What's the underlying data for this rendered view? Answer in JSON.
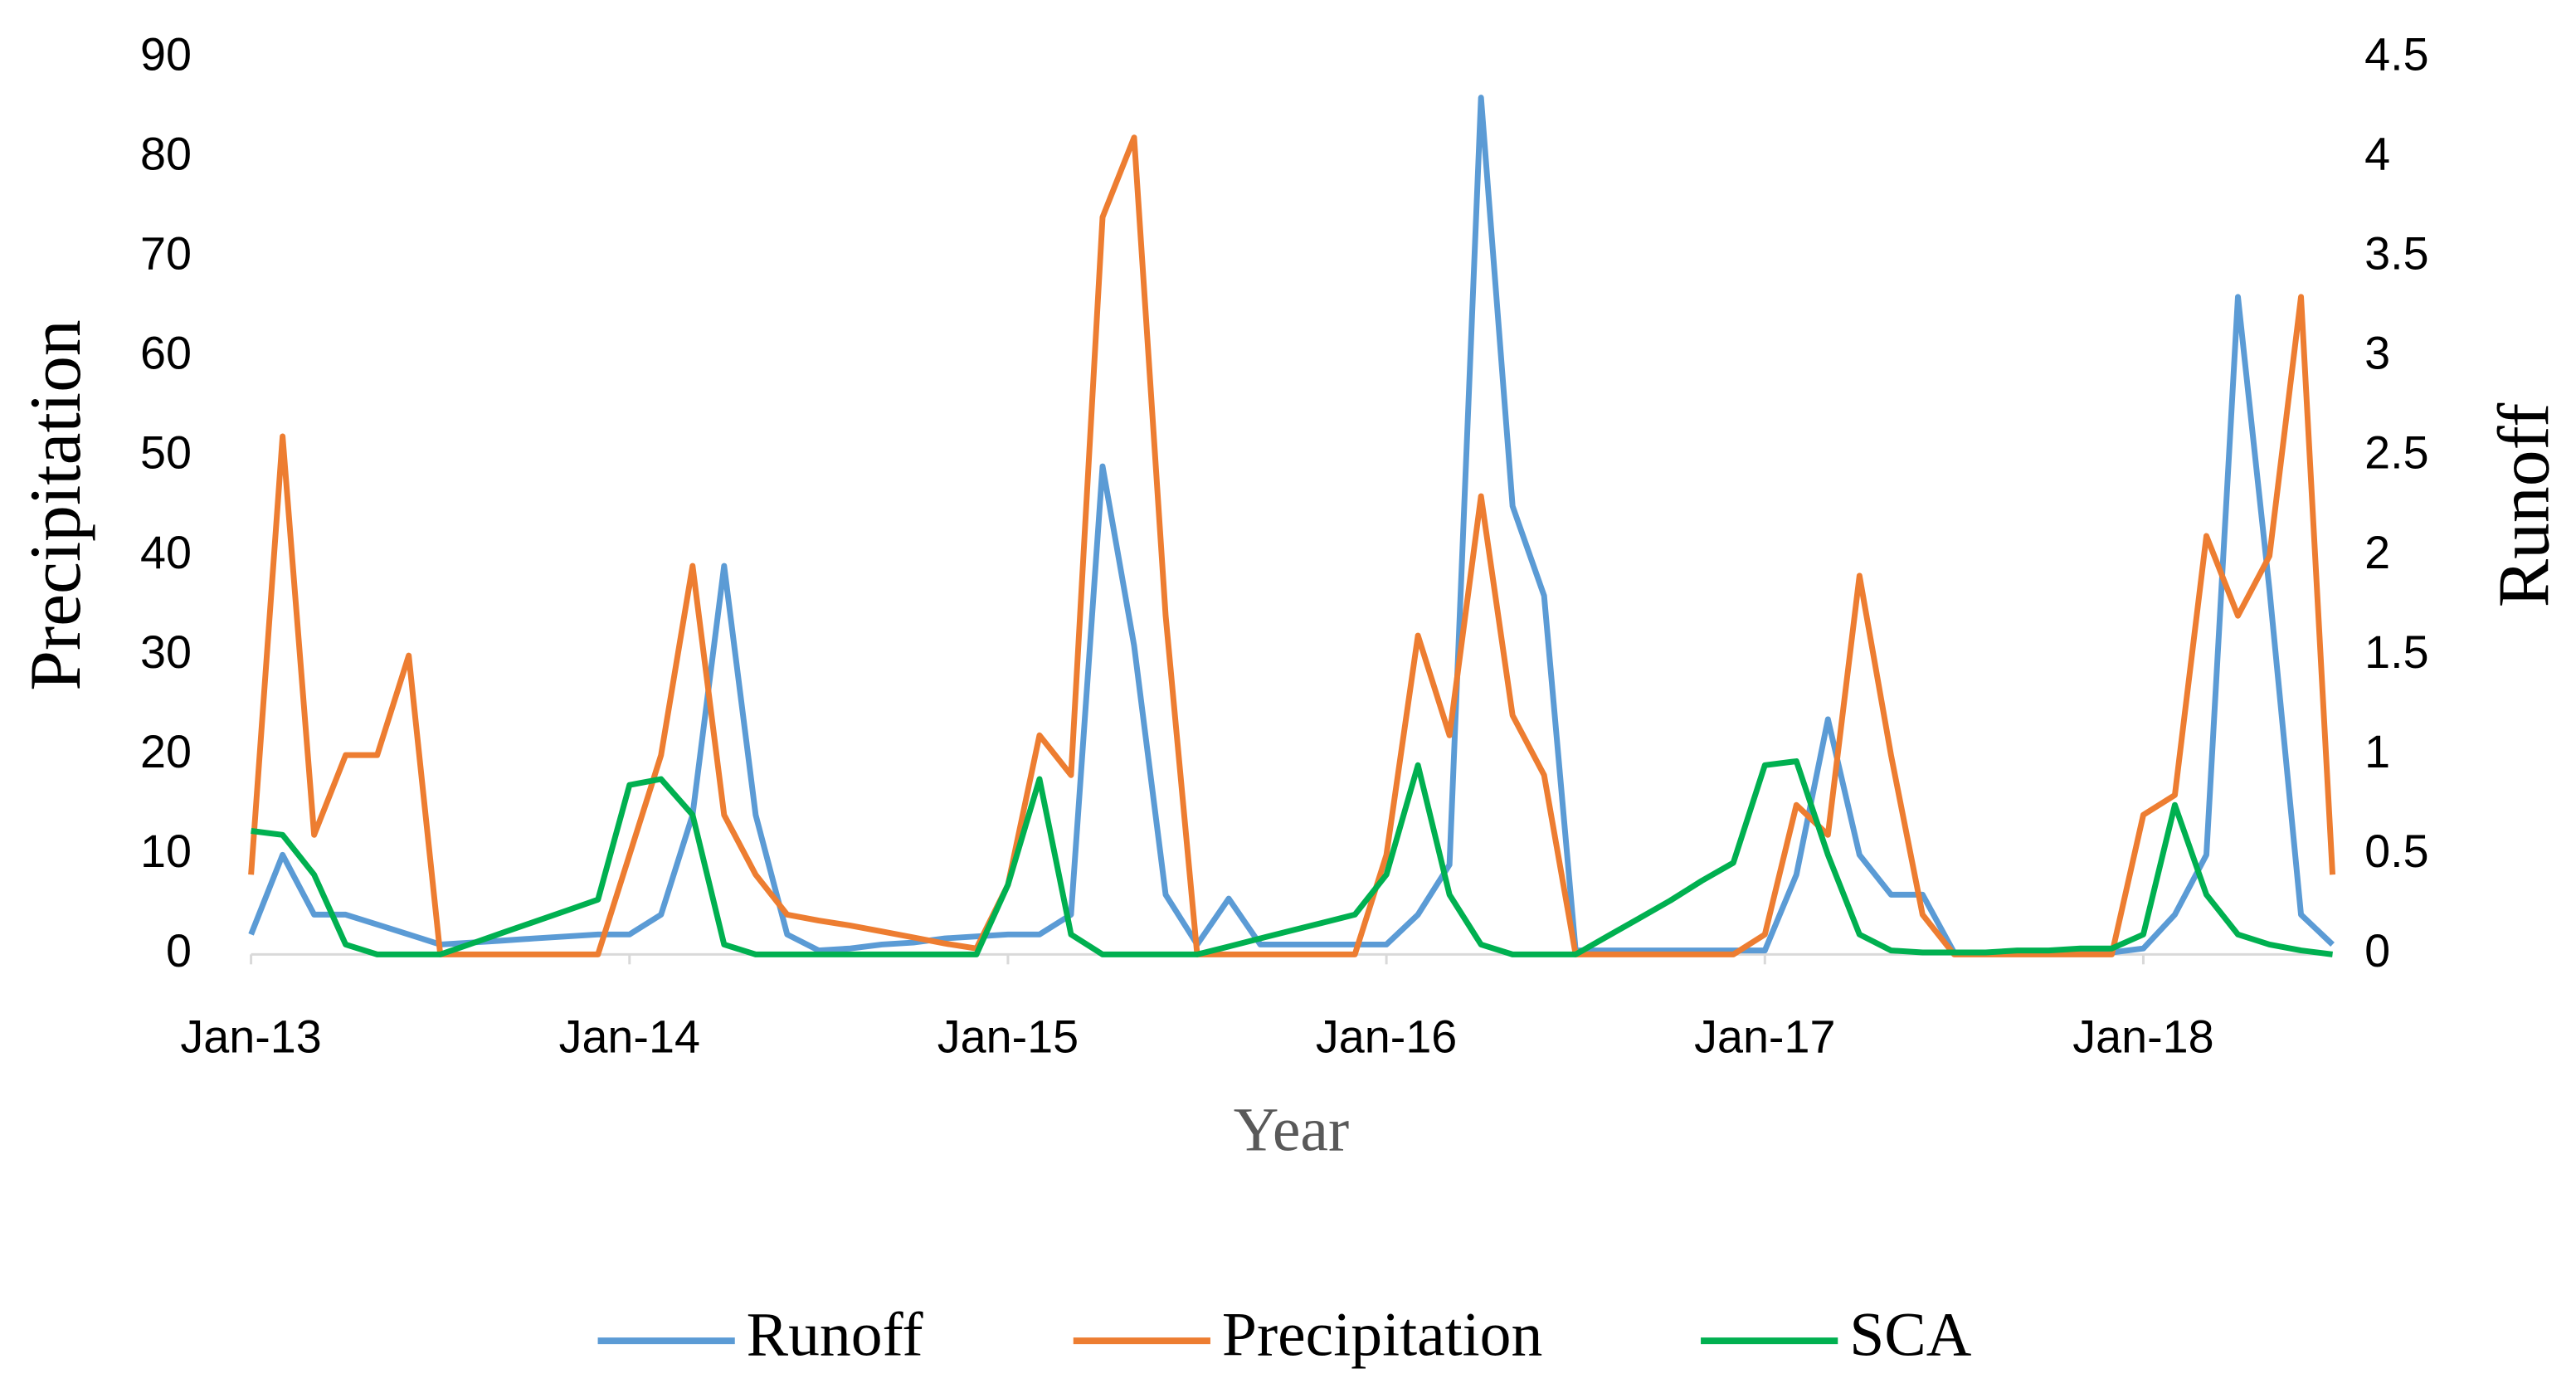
{
  "chart_data": {
    "type": "line",
    "x_label": "Year",
    "y_label": "Precipitation",
    "y2_label": "Runoff",
    "categories": [
      "Jan-13",
      null,
      null,
      null,
      null,
      null,
      null,
      null,
      null,
      null,
      null,
      null,
      "Jan-14",
      null,
      null,
      null,
      null,
      null,
      null,
      null,
      null,
      null,
      null,
      null,
      "Jan-15",
      null,
      null,
      null,
      null,
      null,
      null,
      null,
      null,
      null,
      null,
      null,
      "Jan-16",
      null,
      null,
      null,
      null,
      null,
      null,
      null,
      null,
      null,
      null,
      null,
      "Jan-17",
      null,
      null,
      null,
      null,
      null,
      null,
      null,
      null,
      null,
      null,
      null,
      "Jan-18",
      null,
      null,
      null,
      null,
      null,
      null
    ],
    "ylim": [
      0,
      90
    ],
    "yticks": [
      0,
      10,
      20,
      30,
      40,
      50,
      60,
      70,
      80,
      90
    ],
    "y2lim": [
      0,
      4.5
    ],
    "y2ticks": [
      0,
      0.5,
      1,
      1.5,
      2,
      2.5,
      3,
      3.5,
      4,
      4.5
    ],
    "grid": false,
    "legend": "bottom",
    "series": [
      {
        "name": "Runoff",
        "color": "#5b9bd5",
        "axis": "y2",
        "values": [
          0.1,
          0.5,
          0.2,
          0.2,
          0.15,
          0.1,
          0.05,
          0.06,
          0.07,
          0.08,
          0.09,
          0.1,
          0.1,
          0.2,
          0.7,
          1.95,
          0.7,
          0.1,
          0.02,
          0.03,
          0.05,
          0.06,
          0.08,
          0.09,
          0.1,
          0.1,
          0.2,
          2.45,
          1.55,
          0.3,
          0.05,
          0.28,
          0.05,
          0.05,
          0.05,
          0.05,
          0.05,
          0.2,
          0.45,
          4.3,
          2.25,
          1.8,
          0.02,
          0.02,
          0.02,
          0.02,
          0.02,
          0.02,
          0.02,
          0.4,
          1.18,
          0.5,
          0.3,
          0.3,
          0.01,
          0.01,
          0.01,
          0.01,
          0.01,
          0.01,
          0.03,
          0.2,
          0.5,
          3.3,
          1.83,
          0.2,
          0.05
        ]
      },
      {
        "name": "Precipitation",
        "color": "#ed7d31",
        "axis": "y",
        "values": [
          8,
          52,
          12,
          20,
          20,
          30,
          0,
          0,
          0,
          0,
          0,
          0,
          10,
          20,
          39,
          14,
          8,
          4,
          3.4,
          2.9,
          2.3,
          1.7,
          1.1,
          0.6,
          7,
          22,
          18,
          74,
          82,
          34,
          0,
          0,
          0,
          0,
          0,
          0,
          10,
          32,
          22,
          46,
          24,
          18,
          0,
          0,
          0,
          0,
          0,
          0,
          2,
          15,
          12,
          38,
          20,
          4,
          0,
          0,
          0,
          0,
          0,
          0,
          14,
          16,
          42,
          34,
          40,
          66,
          8
        ]
      },
      {
        "name": "SCA",
        "color": "#00b050",
        "axis": "y2",
        "values": [
          0.62,
          0.6,
          0.4,
          0.05,
          0,
          0,
          0,
          0.055,
          0.11,
          0.165,
          0.22,
          0.275,
          0.85,
          0.88,
          0.7,
          0.05,
          0,
          0,
          0,
          0,
          0,
          0,
          0,
          0,
          0.35,
          0.88,
          0.1,
          0,
          0,
          0,
          0,
          0.04,
          0.08,
          0.12,
          0.16,
          0.2,
          0.4,
          0.95,
          0.3,
          0.05,
          0,
          0,
          0,
          0.09,
          0.18,
          0.27,
          0.37,
          0.46,
          0.95,
          0.97,
          0.5,
          0.1,
          0.02,
          0.01,
          0.01,
          0.01,
          0.02,
          0.02,
          0.03,
          0.03,
          0.1,
          0.75,
          0.3,
          0.1,
          0.05,
          0.02,
          0
        ]
      }
    ]
  }
}
